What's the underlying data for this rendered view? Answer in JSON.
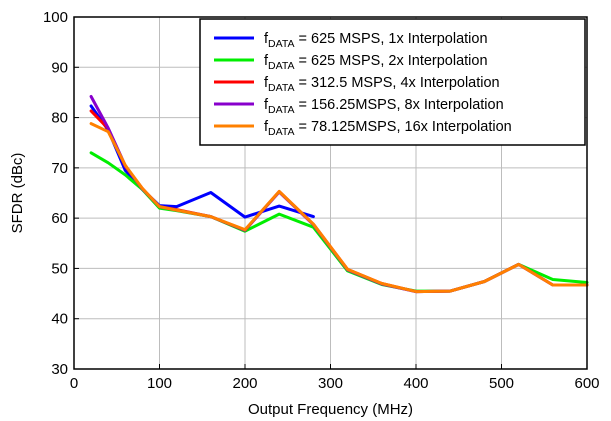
{
  "chart_data": {
    "type": "line",
    "xlabel": "Output Frequency (MHz)",
    "ylabel": "SFDR (dBc)",
    "xlim": [
      0,
      600
    ],
    "ylim": [
      30,
      100
    ],
    "xticks": [
      0,
      100,
      200,
      300,
      400,
      500,
      600
    ],
    "yticks": [
      30,
      40,
      50,
      60,
      70,
      80,
      90,
      100
    ],
    "grid": true,
    "legend_position": "top-right",
    "series": [
      {
        "name": "fDATA = 625 MSPS, 1x Interpolation",
        "legend": {
          "prefix": "f",
          "subscript": "DATA",
          "suffix": " = 625 MSPS, 1x Interpolation"
        },
        "color": "#0000ff",
        "x": [
          20,
          40,
          60,
          80,
          100,
          120,
          160,
          200,
          240,
          280
        ],
        "y": [
          82.3,
          77.5,
          69.5,
          65.7,
          62.5,
          62.3,
          65.1,
          60.2,
          62.4,
          60.3
        ]
      },
      {
        "name": "fDATA = 625 MSPS, 2x Interpolation",
        "legend": {
          "prefix": "f",
          "subscript": "DATA",
          "suffix": " = 625 MSPS, 2x Interpolation"
        },
        "color": "#00ee00",
        "x": [
          20,
          40,
          60,
          80,
          100,
          120,
          160,
          200,
          240,
          280,
          320,
          360,
          400,
          440,
          480,
          520,
          560,
          600
        ],
        "y": [
          73.0,
          71.0,
          68.6,
          65.7,
          62.0,
          61.5,
          60.3,
          57.4,
          60.8,
          58.2,
          49.5,
          46.8,
          45.5,
          45.5,
          47.4,
          50.8,
          47.8,
          47.2
        ]
      },
      {
        "name": "fDATA = 312.5 MSPS, 4x Interpolation",
        "legend": {
          "prefix": "f",
          "subscript": "DATA",
          "suffix": " = 312.5 MSPS, 4x Interpolation"
        },
        "color": "#ff0000",
        "x": [
          20,
          40,
          60,
          80,
          100,
          120,
          160,
          200,
          240,
          280,
          320,
          360,
          400,
          440,
          480,
          520,
          560,
          600
        ],
        "y": [
          81.3,
          77.8,
          70.3,
          65.9,
          62.3,
          61.7,
          60.3,
          57.6,
          65.3,
          58.8,
          49.8,
          47.0,
          45.4,
          45.5,
          47.4,
          50.8,
          46.7,
          46.7
        ]
      },
      {
        "name": "fDATA = 156.25MSPS, 8x Interpolation",
        "legend": {
          "prefix": "f",
          "subscript": "DATA",
          "suffix": " = 156.25MSPS, 8x Interpolation"
        },
        "color": "#8800cc",
        "x": [
          20,
          40,
          60,
          80,
          100,
          120,
          160,
          200,
          240,
          280,
          320,
          360,
          400,
          440,
          480,
          520,
          560,
          600
        ],
        "y": [
          84.2,
          77.9,
          70.4,
          65.8,
          62.3,
          61.6,
          60.3,
          57.6,
          65.2,
          58.7,
          49.7,
          46.9,
          45.4,
          45.5,
          47.4,
          50.8,
          46.7,
          46.7
        ]
      },
      {
        "name": "fDATA = 78.125MSPS, 16x Interpolation",
        "legend": {
          "prefix": "f",
          "subscript": "DATA",
          "suffix": " = 78.125MSPS, 16x Interpolation"
        },
        "color": "#ff8000",
        "x": [
          20,
          40,
          60,
          80,
          100,
          120,
          160,
          200,
          240,
          280,
          320,
          360,
          400,
          440,
          480,
          520,
          560,
          600
        ],
        "y": [
          78.8,
          77.2,
          70.5,
          65.9,
          62.3,
          61.6,
          60.3,
          57.7,
          65.3,
          58.8,
          49.8,
          47.0,
          45.4,
          45.5,
          47.4,
          50.8,
          46.7,
          46.7
        ]
      }
    ]
  }
}
